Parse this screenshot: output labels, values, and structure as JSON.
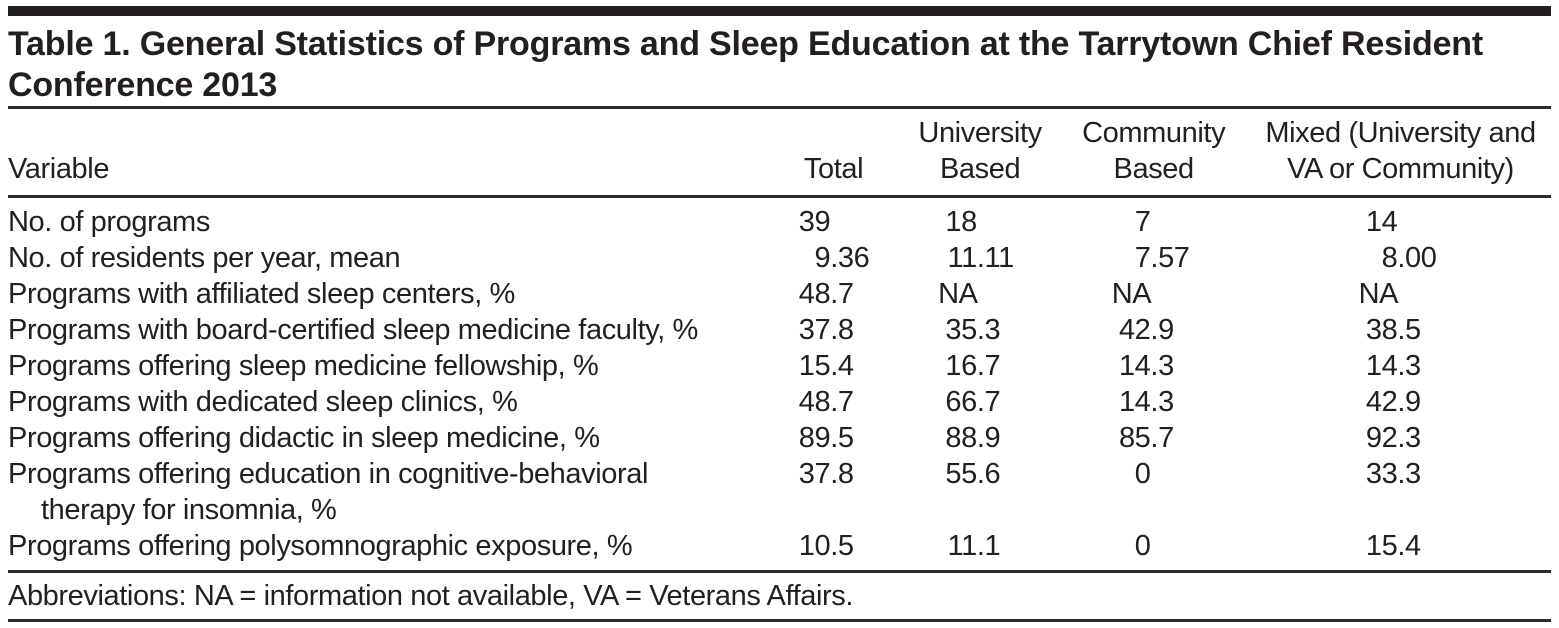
{
  "page": {
    "title": "Table 1. General Statistics of Programs and Sleep Education at the Tarrytown Chief Resident\nConference 2013"
  },
  "table": {
    "headers": {
      "variable": "Variable",
      "total": "Total",
      "university": "University\nBased",
      "community": "Community\nBased",
      "mixed": "Mixed (University and\nVA or Community)"
    },
    "rows": [
      {
        "label": "No. of programs",
        "total": "39",
        "university": "18",
        "community": "7",
        "mixed": "14"
      },
      {
        "label": "No. of residents per year, mean",
        "total": "9.36",
        "university": "11.11",
        "community": "7.57",
        "mixed": "8.00"
      },
      {
        "label": "Programs with affiliated sleep centers, %",
        "total": "48.7",
        "university": "NA",
        "community": "NA",
        "mixed": "NA"
      },
      {
        "label": "Programs with board-certified sleep medicine faculty, %",
        "total": "37.8",
        "university": "35.3",
        "community": "42.9",
        "mixed": "38.5"
      },
      {
        "label": "Programs offering sleep medicine fellowship, %",
        "total": "15.4",
        "university": "16.7",
        "community": "14.3",
        "mixed": "14.3"
      },
      {
        "label": "Programs with dedicated sleep clinics, %",
        "total": "48.7",
        "university": "66.7",
        "community": "14.3",
        "mixed": "42.9"
      },
      {
        "label": "Programs offering didactic in sleep medicine, %",
        "total": "89.5",
        "university": "88.9",
        "community": "85.7",
        "mixed": "92.3"
      },
      {
        "label": "Programs offering education in cognitive-behavioral\ntherapy for insomnia, %",
        "total": "37.8",
        "university": "55.6",
        "community": "0",
        "mixed": "33.3"
      },
      {
        "label": "Programs offering polysomnographic exposure, %",
        "total": "10.5",
        "university": "11.1",
        "community": "0",
        "mixed": "15.4"
      }
    ],
    "footnote": "Abbreviations: NA = information not available, VA = Veterans Affairs."
  },
  "colors": {
    "text": "#231f20",
    "rules": "#2e2b2c",
    "top_bar": "#231f20",
    "background": "#ffffff"
  }
}
